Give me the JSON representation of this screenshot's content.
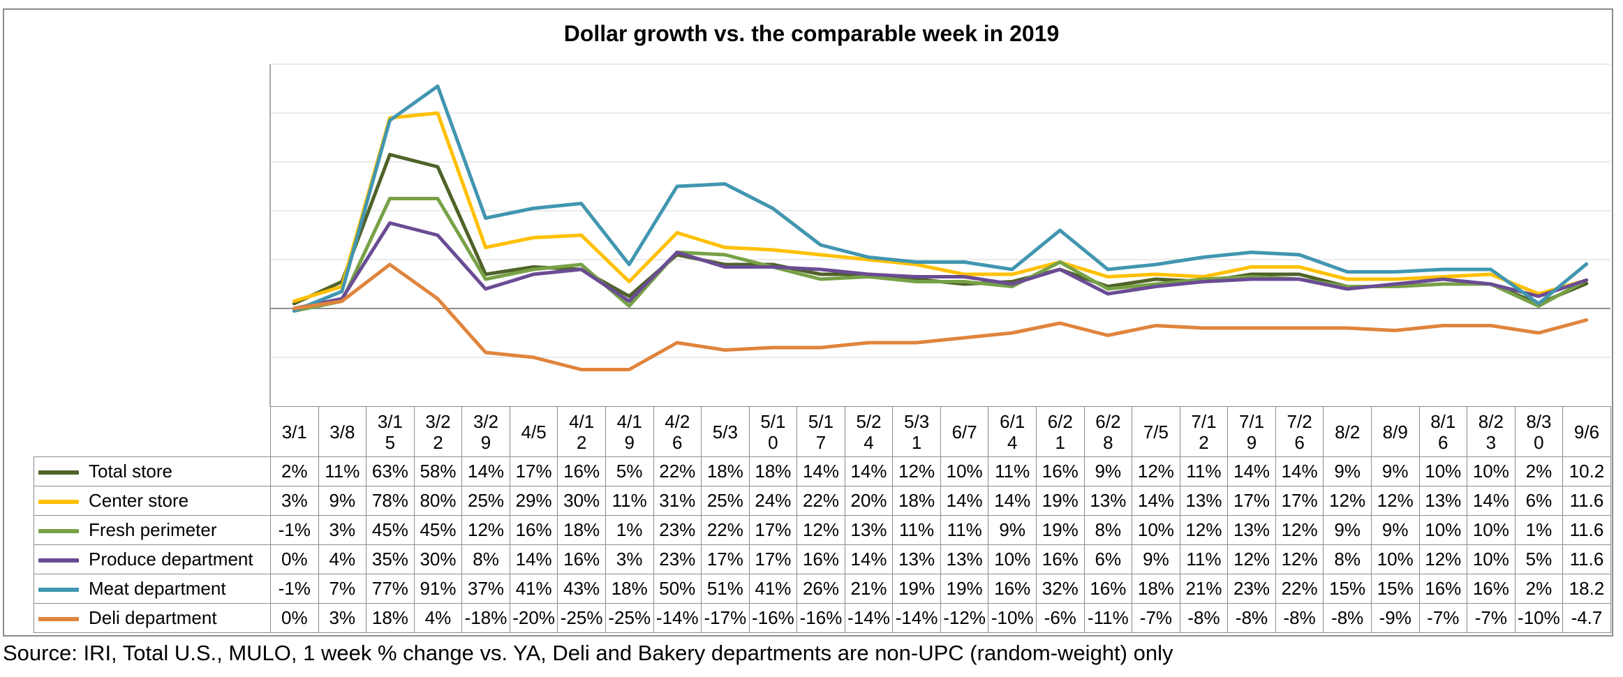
{
  "chart_data": {
    "type": "line",
    "title": "Dollar growth vs. the comparable week in 2019",
    "categories": [
      "3/1",
      "3/8",
      "3/15",
      "3/22",
      "3/29",
      "4/5",
      "4/12",
      "4/19",
      "4/26",
      "5/3",
      "5/10",
      "5/17",
      "5/24",
      "5/31",
      "6/7",
      "6/14",
      "6/21",
      "6/28",
      "7/5",
      "7/12",
      "7/19",
      "7/26",
      "8/2",
      "8/9",
      "8/16",
      "8/23",
      "8/30",
      "9/6"
    ],
    "category_labels": [
      "3/1",
      "3/8",
      "3/1 5",
      "3/2 2",
      "3/2 9",
      "4/5",
      "4/1 2",
      "4/1 9",
      "4/2 6",
      "5/3",
      "5/1 0",
      "5/1 7",
      "5/2 4",
      "5/3 1",
      "6/7",
      "6/1 4",
      "6/2 1",
      "6/2 8",
      "7/5",
      "7/1 2",
      "7/1 9",
      "7/2 6",
      "8/2",
      "8/9",
      "8/1 6",
      "8/2 3",
      "8/3 0",
      "9/6"
    ],
    "ylim": [
      -40,
      100
    ],
    "y_gridlines": [
      -20,
      0,
      20,
      40,
      60,
      80,
      100
    ],
    "grid": true,
    "legend": "data table",
    "series": [
      {
        "name": "Total store",
        "color": "#4f6228",
        "values": [
          2,
          11,
          63,
          58,
          14,
          17,
          16,
          5,
          22,
          18,
          18,
          14,
          14,
          12,
          10,
          11,
          16,
          9,
          12,
          11,
          14,
          14,
          9,
          9,
          10,
          10,
          2,
          10.2
        ],
        "labels": [
          "2%",
          "11%",
          "63%",
          "58%",
          "14%",
          "17%",
          "16%",
          "5%",
          "22%",
          "18%",
          "18%",
          "14%",
          "14%",
          "12%",
          "10%",
          "11%",
          "16%",
          "9%",
          "12%",
          "11%",
          "14%",
          "14%",
          "9%",
          "9%",
          "10%",
          "10%",
          "2%",
          "10.2"
        ]
      },
      {
        "name": "Center store",
        "color": "#ffc000",
        "values": [
          3,
          9,
          78,
          80,
          25,
          29,
          30,
          11,
          31,
          25,
          24,
          22,
          20,
          18,
          14,
          14,
          19,
          13,
          14,
          13,
          17,
          17,
          12,
          12,
          13,
          14,
          6,
          11.6
        ],
        "labels": [
          "3%",
          "9%",
          "78%",
          "80%",
          "25%",
          "29%",
          "30%",
          "11%",
          "31%",
          "25%",
          "24%",
          "22%",
          "20%",
          "18%",
          "14%",
          "14%",
          "19%",
          "13%",
          "14%",
          "13%",
          "17%",
          "17%",
          "12%",
          "12%",
          "13%",
          "14%",
          "6%",
          "11.6"
        ]
      },
      {
        "name": "Fresh perimeter",
        "color": "#77a146",
        "values": [
          -1,
          3,
          45,
          45,
          12,
          16,
          18,
          1,
          23,
          22,
          17,
          12,
          13,
          11,
          11,
          9,
          19,
          8,
          10,
          12,
          13,
          12,
          9,
          9,
          10,
          10,
          1,
          11.6
        ],
        "labels": [
          "-1%",
          "3%",
          "45%",
          "45%",
          "12%",
          "16%",
          "18%",
          "1%",
          "23%",
          "22%",
          "17%",
          "12%",
          "13%",
          "11%",
          "11%",
          "9%",
          "19%",
          "8%",
          "10%",
          "12%",
          "13%",
          "12%",
          "9%",
          "9%",
          "10%",
          "10%",
          "1%",
          "11.6"
        ]
      },
      {
        "name": "Produce department",
        "color": "#6a4c93",
        "values": [
          0,
          4,
          35,
          30,
          8,
          14,
          16,
          3,
          23,
          17,
          17,
          16,
          14,
          13,
          13,
          10,
          16,
          6,
          9,
          11,
          12,
          12,
          8,
          10,
          12,
          10,
          5,
          11.6
        ],
        "labels": [
          "0%",
          "4%",
          "35%",
          "30%",
          "8%",
          "14%",
          "16%",
          "3%",
          "23%",
          "17%",
          "17%",
          "16%",
          "14%",
          "13%",
          "13%",
          "10%",
          "16%",
          "6%",
          "9%",
          "11%",
          "12%",
          "12%",
          "8%",
          "10%",
          "12%",
          "10%",
          "5%",
          "11.6"
        ]
      },
      {
        "name": "Meat department",
        "color": "#4196b0",
        "values": [
          -1,
          7,
          77,
          91,
          37,
          41,
          43,
          18,
          50,
          51,
          41,
          26,
          21,
          19,
          19,
          16,
          32,
          16,
          18,
          21,
          23,
          22,
          15,
          15,
          16,
          16,
          2,
          18.2
        ],
        "labels": [
          "-1%",
          "7%",
          "77%",
          "91%",
          "37%",
          "41%",
          "43%",
          "18%",
          "50%",
          "51%",
          "41%",
          "26%",
          "21%",
          "19%",
          "19%",
          "16%",
          "32%",
          "16%",
          "18%",
          "21%",
          "23%",
          "22%",
          "15%",
          "15%",
          "16%",
          "16%",
          "2%",
          "18.2"
        ]
      },
      {
        "name": "Deli department",
        "color": "#e0843c",
        "values": [
          0,
          3,
          18,
          4,
          -18,
          -20,
          -25,
          -25,
          -14,
          -17,
          -16,
          -16,
          -14,
          -14,
          -12,
          -10,
          -6,
          -11,
          -7,
          -8,
          -8,
          -8,
          -8,
          -9,
          -7,
          -7,
          -10,
          -4.7
        ],
        "labels": [
          "0%",
          "3%",
          "18%",
          "4%",
          "-18%",
          "-20%",
          "-25%",
          "-25%",
          "-14%",
          "-17%",
          "-16%",
          "-16%",
          "-14%",
          "-14%",
          "-12%",
          "-10%",
          "-6%",
          "-11%",
          "-7%",
          "-8%",
          "-8%",
          "-8%",
          "-8%",
          "-9%",
          "-7%",
          "-7%",
          "-10%",
          "-4.7"
        ]
      }
    ]
  },
  "source_note": "Source: IRI, Total U.S., MULO, 1 week % change vs. YA, Deli and Bakery departments are non-UPC (random-weight) only"
}
